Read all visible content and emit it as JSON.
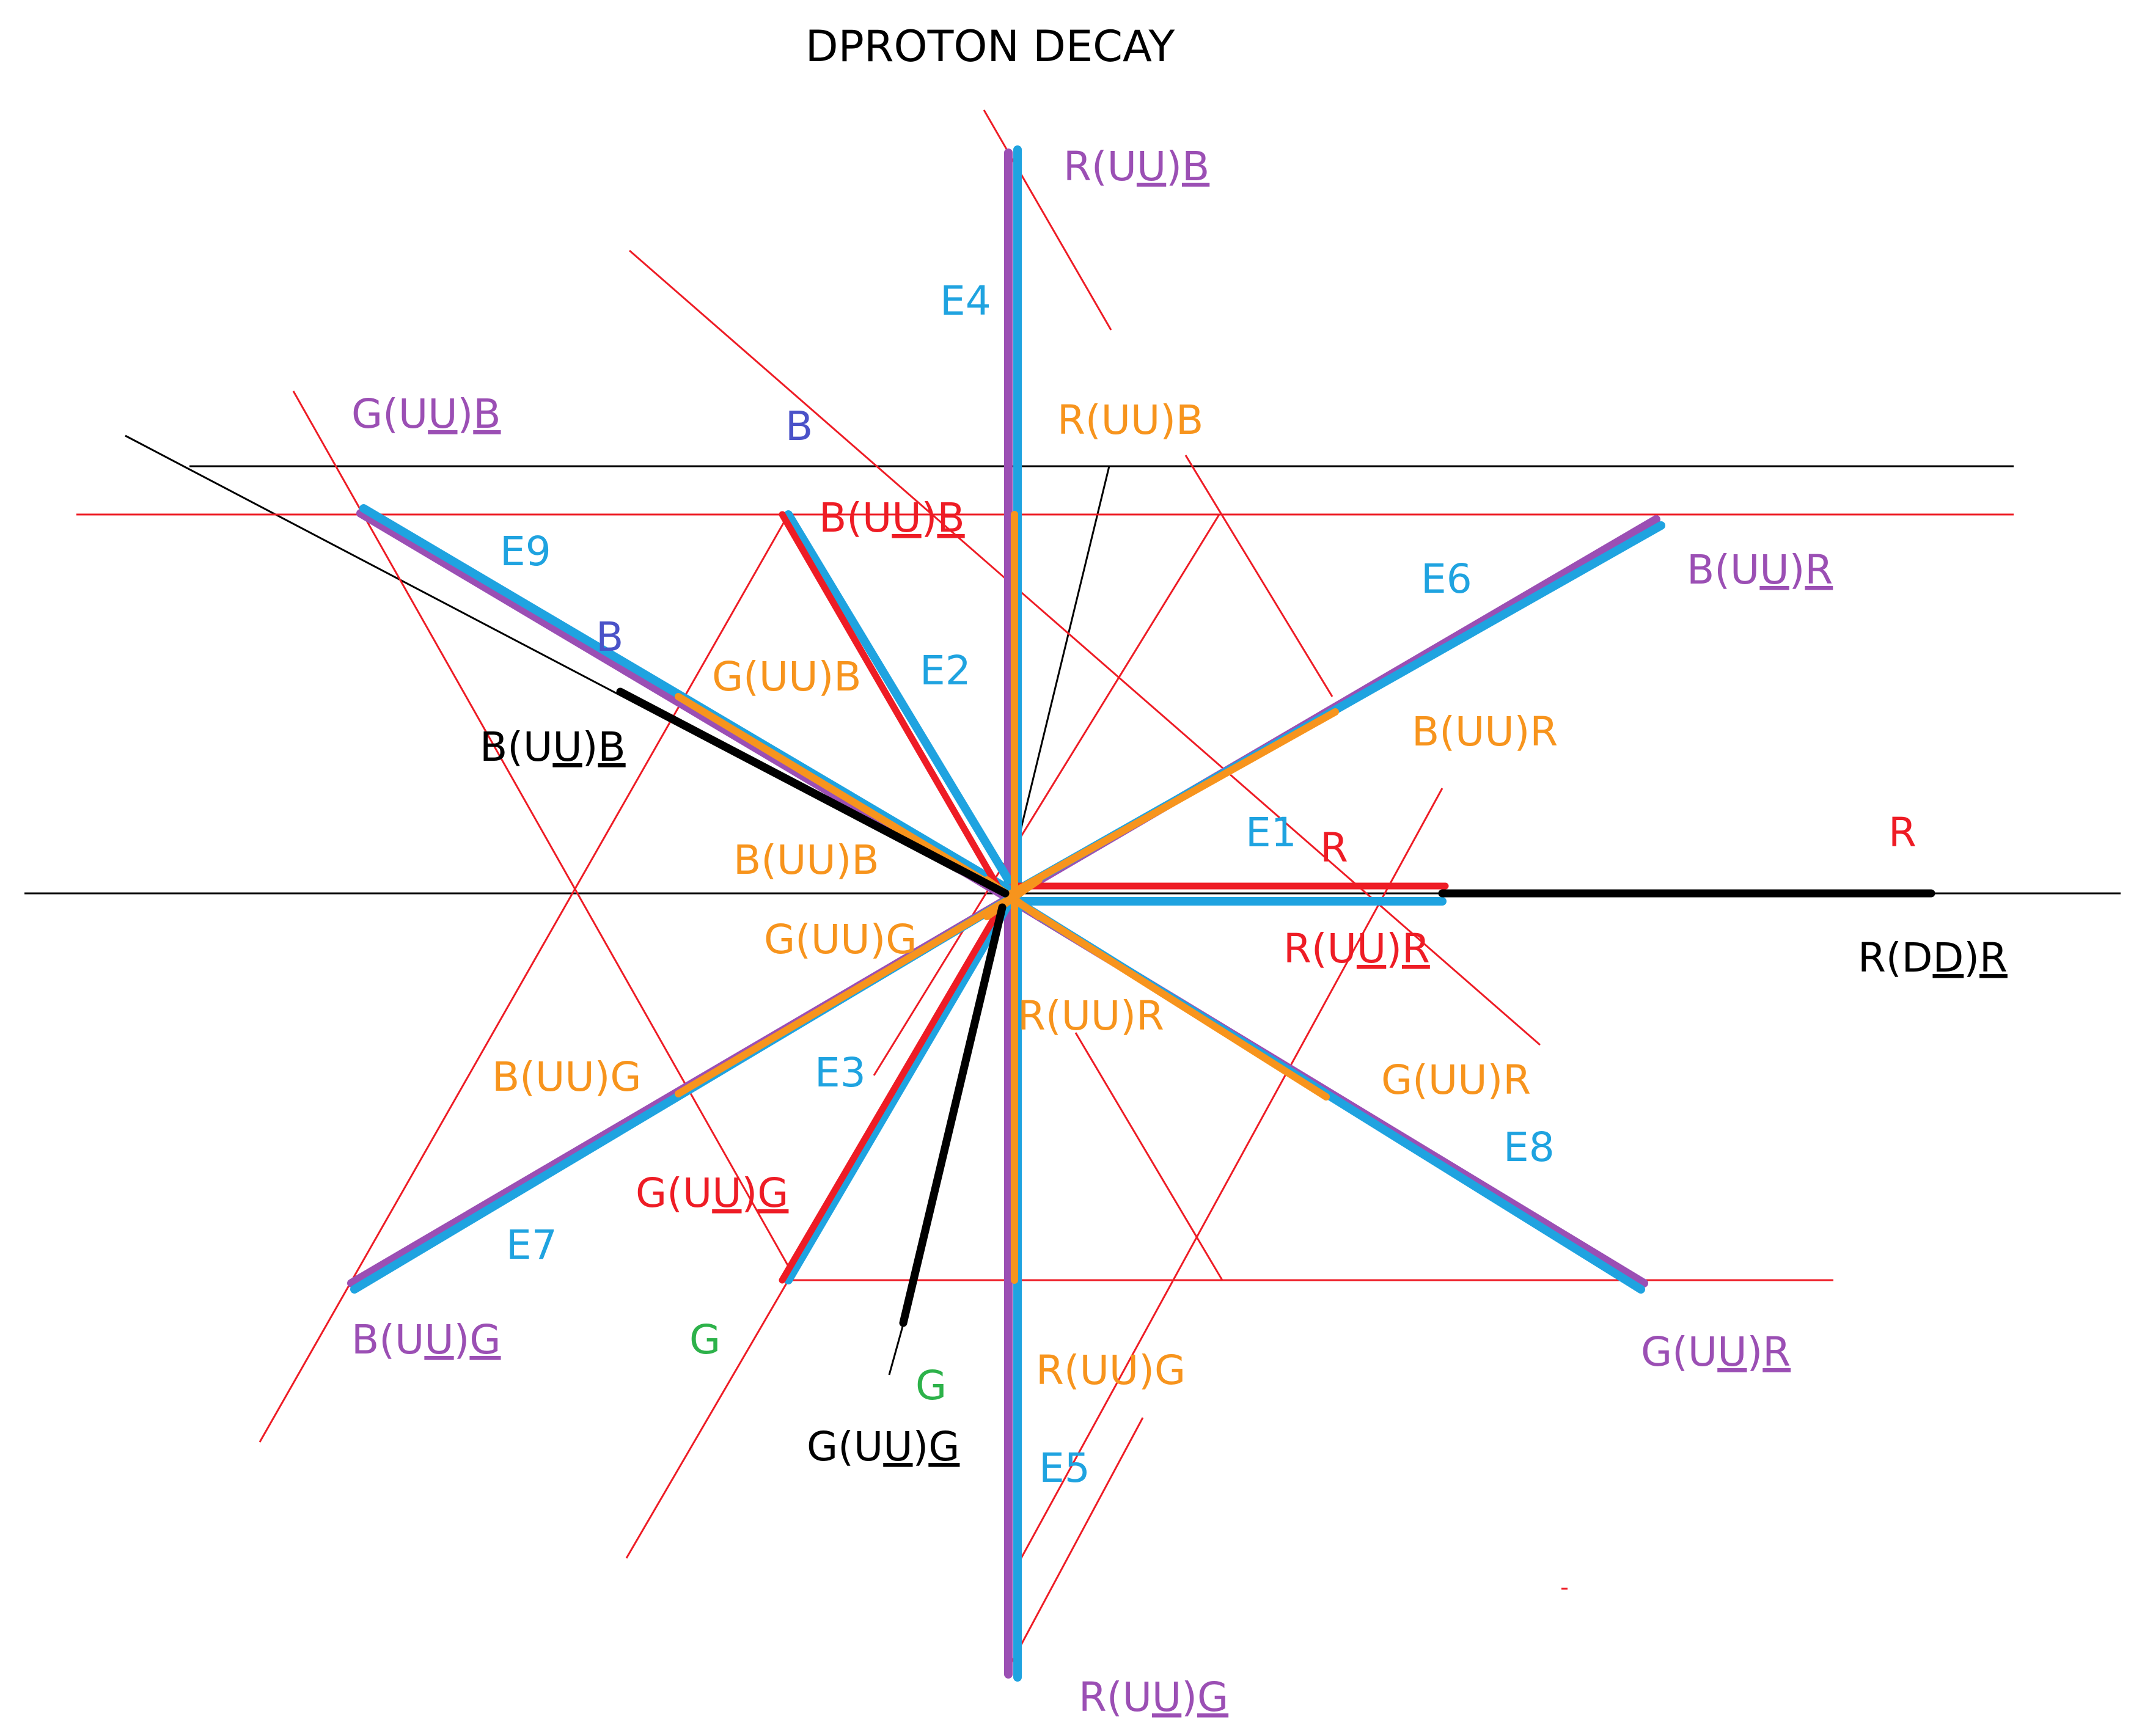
{
  "title": "DPROTON DECAY",
  "colors": {
    "red": "#ee1c25",
    "blue": "#1fa3e0",
    "purple": "#9b4fb4",
    "orange": "#f7941d",
    "black": "#000000",
    "green": "#2db24a",
    "indigo": "#4a52c8"
  },
  "labels": {
    "e1": "E1",
    "e2": "E2",
    "e3": "E3",
    "e4": "E4",
    "e5": "E5",
    "e6": "E6",
    "e7": "E7",
    "e8": "E8",
    "e9": "E9",
    "r_uu_b_top": {
      "pre": "R(U",
      "ul": "U",
      "mid": ")",
      "ul2": "B"
    },
    "g_uu_b_tl": {
      "pre": "G(U",
      "ul": "U",
      "mid": ")",
      "ul2": "B"
    },
    "b_uu_r_r": {
      "pre": "B(U",
      "ul": "U",
      "mid": ")",
      "ul2": "R"
    },
    "b_uu_b_red": {
      "pre": "B(U",
      "ul": "U",
      "mid": ")",
      "ul2": "B"
    },
    "b_uu_b_black": {
      "pre": "B(U",
      "ul": "U",
      "mid": ")",
      "ul2": "B"
    },
    "r_uu_r_red": {
      "pre": "R(U",
      "ul": "U",
      "mid": ")",
      "ul2": "R"
    },
    "r_dd_r": {
      "pre": "R(D",
      "ul": "D",
      "mid": ")",
      "ul2": "R"
    },
    "g_uu_g_red": {
      "pre": "G(U",
      "ul": "U",
      "mid": ")",
      "ul2": "G"
    },
    "b_uu_g_bl": {
      "pre": "B(U",
      "ul": "U",
      "mid": ")",
      "ul2": "G"
    },
    "g_uu_g_black": {
      "pre": "G(U",
      "ul": "U",
      "mid": ")",
      "ul2": "G"
    },
    "g_uu_r_br": {
      "pre": "G(U",
      "ul": "U",
      "mid": ")",
      "ul2": "R"
    },
    "r_uu_g_bottom": {
      "pre": "R(U",
      "ul": "U",
      "mid": ")",
      "ul2": "G"
    },
    "r_uu_b_orange": "R(UU)B",
    "g_uu_b_orange": "G(UU)B",
    "b_uu_r_orange": "B(UU)R",
    "b_uu_b_orange": "B(UU)B",
    "g_uu_g_orange": "G(UU)G",
    "r_uu_r_orange": "R(UU)R",
    "b_uu_g_orange": "B(UU)G",
    "g_uu_r_orange": "G(UU)R",
    "r_uu_g_orange": "R(UU)G",
    "b_top": "B",
    "b_mid": "B",
    "r_small": "R",
    "r_far": "R",
    "g_left": "G",
    "g_mid": "G"
  }
}
